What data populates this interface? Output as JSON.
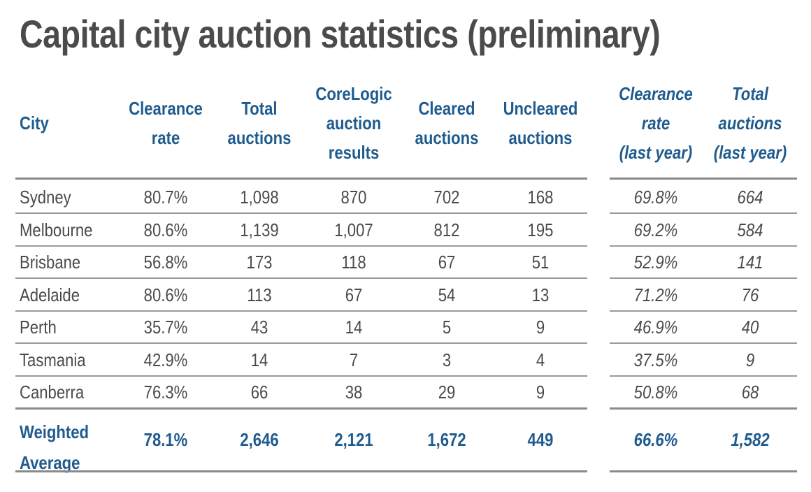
{
  "title": "Capital city auction statistics (preliminary)",
  "headers": [
    [
      "City"
    ],
    [
      "Clearance",
      "rate"
    ],
    [
      "Total",
      "auctions"
    ],
    [
      "CoreLogic",
      "auction",
      "results"
    ],
    [
      "Cleared",
      "auctions"
    ],
    [
      "Uncleared",
      "auctions"
    ],
    [
      "Clearance",
      "rate",
      "(last year)"
    ],
    [
      "Total",
      "auctions",
      "(last year)"
    ]
  ],
  "rows": [
    [
      "Sydney",
      "80.7%",
      "1,098",
      "870",
      "702",
      "168",
      "69.8%",
      "664"
    ],
    [
      "Melbourne",
      "80.6%",
      "1,139",
      "1,007",
      "812",
      "195",
      "69.2%",
      "584"
    ],
    [
      "Brisbane",
      "56.8%",
      "173",
      "118",
      "67",
      "51",
      "52.9%",
      "141"
    ],
    [
      "Adelaide",
      "80.6%",
      "113",
      "67",
      "54",
      "13",
      "71.2%",
      "76"
    ],
    [
      "Perth",
      "35.7%",
      "43",
      "14",
      "5",
      "9",
      "46.9%",
      "40"
    ],
    [
      "Tasmania",
      "42.9%",
      "14",
      "7",
      "3",
      "4",
      "37.5%",
      "9"
    ],
    [
      "Canberra",
      "76.3%",
      "66",
      "38",
      "29",
      "9",
      "50.8%",
      "68"
    ]
  ],
  "average": {
    "label": [
      "Weighted",
      "Average"
    ],
    "values": [
      "78.1%",
      "2,646",
      "2,121",
      "1,672",
      "449",
      "66.6%",
      "1,582"
    ]
  },
  "colors": {
    "header": "#1f5b8e",
    "text": "#4a4a4a",
    "title": "#4b4b4b",
    "rule": "#8a8a8a"
  }
}
